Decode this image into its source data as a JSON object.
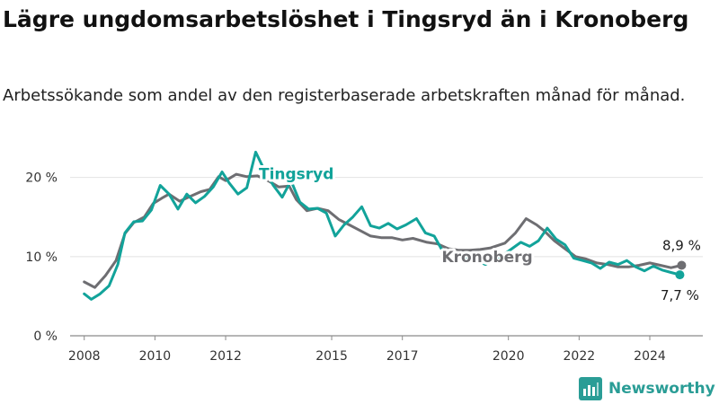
{
  "title": "Lägre ungdomsarbetslöshet i Tingsryd än i Kronoberg",
  "subtitle": "Arbetssökande som andel av den registerbaserade arbetskraften månad för månad.",
  "brand": {
    "name": "Newsworthy",
    "icon": "newsworthy-logo-icon",
    "color": "#2a9d96"
  },
  "chart_data": {
    "type": "line",
    "xlabel": "",
    "ylabel": "",
    "xlim": [
      2007.6,
      2025.5
    ],
    "ylim": [
      0,
      22
    ],
    "x_ticks": [
      "2008",
      "2010",
      "2012",
      "2015",
      "2017",
      "2020",
      "2022",
      "2024"
    ],
    "y_ticks": [
      {
        "value": 0,
        "label": "0 %"
      },
      {
        "value": 10,
        "label": "10 %"
      },
      {
        "value": 20,
        "label": "20 %"
      }
    ],
    "grid": true,
    "series": [
      {
        "name": "Kronoberg",
        "color": "#6e6e72",
        "end_label": "8,9 %",
        "points": [
          [
            2008.0,
            6.8
          ],
          [
            2008.3,
            6.1
          ],
          [
            2008.6,
            7.6
          ],
          [
            2008.9,
            9.5
          ],
          [
            2009.15,
            12.9
          ],
          [
            2009.4,
            14.3
          ],
          [
            2009.7,
            15.0
          ],
          [
            2009.95,
            16.7
          ],
          [
            2010.2,
            17.4
          ],
          [
            2010.4,
            17.9
          ],
          [
            2010.7,
            17.0
          ],
          [
            2011.0,
            17.6
          ],
          [
            2011.3,
            18.2
          ],
          [
            2011.55,
            18.5
          ],
          [
            2011.8,
            20.1
          ],
          [
            2012.0,
            19.6
          ],
          [
            2012.3,
            20.4
          ],
          [
            2012.6,
            20.1
          ],
          [
            2012.9,
            20.2
          ],
          [
            2013.2,
            19.6
          ],
          [
            2013.5,
            18.8
          ],
          [
            2013.8,
            18.9
          ],
          [
            2014.0,
            17.2
          ],
          [
            2014.3,
            15.8
          ],
          [
            2014.6,
            16.1
          ],
          [
            2014.9,
            15.8
          ],
          [
            2015.2,
            14.7
          ],
          [
            2015.5,
            14.0
          ],
          [
            2015.8,
            13.3
          ],
          [
            2016.1,
            12.6
          ],
          [
            2016.4,
            12.4
          ],
          [
            2016.7,
            12.4
          ],
          [
            2017.0,
            12.1
          ],
          [
            2017.3,
            12.3
          ],
          [
            2017.7,
            11.8
          ],
          [
            2018.0,
            11.6
          ],
          [
            2018.3,
            11.0
          ],
          [
            2018.6,
            10.8
          ],
          [
            2018.9,
            10.8
          ],
          [
            2019.2,
            10.9
          ],
          [
            2019.5,
            11.1
          ],
          [
            2019.9,
            11.7
          ],
          [
            2020.2,
            13.0
          ],
          [
            2020.5,
            14.8
          ],
          [
            2020.8,
            14.0
          ],
          [
            2021.0,
            13.3
          ],
          [
            2021.3,
            12.0
          ],
          [
            2021.6,
            11.0
          ],
          [
            2021.9,
            10.0
          ],
          [
            2022.2,
            9.7
          ],
          [
            2022.5,
            9.2
          ],
          [
            2022.8,
            9.0
          ],
          [
            2023.1,
            8.7
          ],
          [
            2023.4,
            8.7
          ],
          [
            2023.7,
            8.9
          ],
          [
            2024.0,
            9.2
          ],
          [
            2024.3,
            8.9
          ],
          [
            2024.6,
            8.6
          ],
          [
            2024.9,
            8.9
          ]
        ]
      },
      {
        "name": "Tingsryd",
        "color": "#12a39a",
        "end_label": "7,7 %",
        "points": [
          [
            2008.0,
            5.3
          ],
          [
            2008.2,
            4.6
          ],
          [
            2008.45,
            5.3
          ],
          [
            2008.7,
            6.3
          ],
          [
            2008.95,
            9.0
          ],
          [
            2009.15,
            13.0
          ],
          [
            2009.4,
            14.4
          ],
          [
            2009.65,
            14.5
          ],
          [
            2009.9,
            15.9
          ],
          [
            2010.15,
            19.0
          ],
          [
            2010.4,
            17.9
          ],
          [
            2010.65,
            16.0
          ],
          [
            2010.9,
            17.9
          ],
          [
            2011.15,
            16.8
          ],
          [
            2011.4,
            17.6
          ],
          [
            2011.65,
            18.8
          ],
          [
            2011.9,
            20.7
          ],
          [
            2012.1,
            19.3
          ],
          [
            2012.35,
            17.9
          ],
          [
            2012.6,
            18.7
          ],
          [
            2012.85,
            23.2
          ],
          [
            2013.1,
            20.9
          ],
          [
            2013.35,
            19.0
          ],
          [
            2013.6,
            17.5
          ],
          [
            2013.85,
            19.6
          ],
          [
            2014.1,
            16.9
          ],
          [
            2014.35,
            16.0
          ],
          [
            2014.6,
            16.1
          ],
          [
            2014.85,
            15.5
          ],
          [
            2015.1,
            12.6
          ],
          [
            2015.35,
            14.0
          ],
          [
            2015.6,
            15.0
          ],
          [
            2015.85,
            16.3
          ],
          [
            2016.1,
            13.9
          ],
          [
            2016.35,
            13.6
          ],
          [
            2016.6,
            14.2
          ],
          [
            2016.85,
            13.5
          ],
          [
            2017.1,
            14.0
          ],
          [
            2017.4,
            14.8
          ],
          [
            2017.65,
            13.0
          ],
          [
            2017.9,
            12.6
          ],
          [
            2018.1,
            11.0
          ],
          [
            2018.35,
            10.5
          ],
          [
            2018.6,
            10.2
          ],
          [
            2018.85,
            9.9
          ],
          [
            2019.1,
            9.5
          ],
          [
            2019.35,
            9.0
          ],
          [
            2019.6,
            9.6
          ],
          [
            2019.85,
            10.2
          ],
          [
            2020.1,
            11.0
          ],
          [
            2020.35,
            11.8
          ],
          [
            2020.6,
            11.3
          ],
          [
            2020.85,
            12.0
          ],
          [
            2021.1,
            13.6
          ],
          [
            2021.35,
            12.2
          ],
          [
            2021.6,
            11.5
          ],
          [
            2021.85,
            9.8
          ],
          [
            2022.1,
            9.5
          ],
          [
            2022.35,
            9.2
          ],
          [
            2022.6,
            8.5
          ],
          [
            2022.85,
            9.3
          ],
          [
            2023.1,
            9.0
          ],
          [
            2023.35,
            9.5
          ],
          [
            2023.6,
            8.7
          ],
          [
            2023.85,
            8.2
          ],
          [
            2024.1,
            8.8
          ],
          [
            2024.35,
            8.3
          ],
          [
            2024.6,
            8.0
          ],
          [
            2024.85,
            7.7
          ]
        ]
      }
    ]
  }
}
